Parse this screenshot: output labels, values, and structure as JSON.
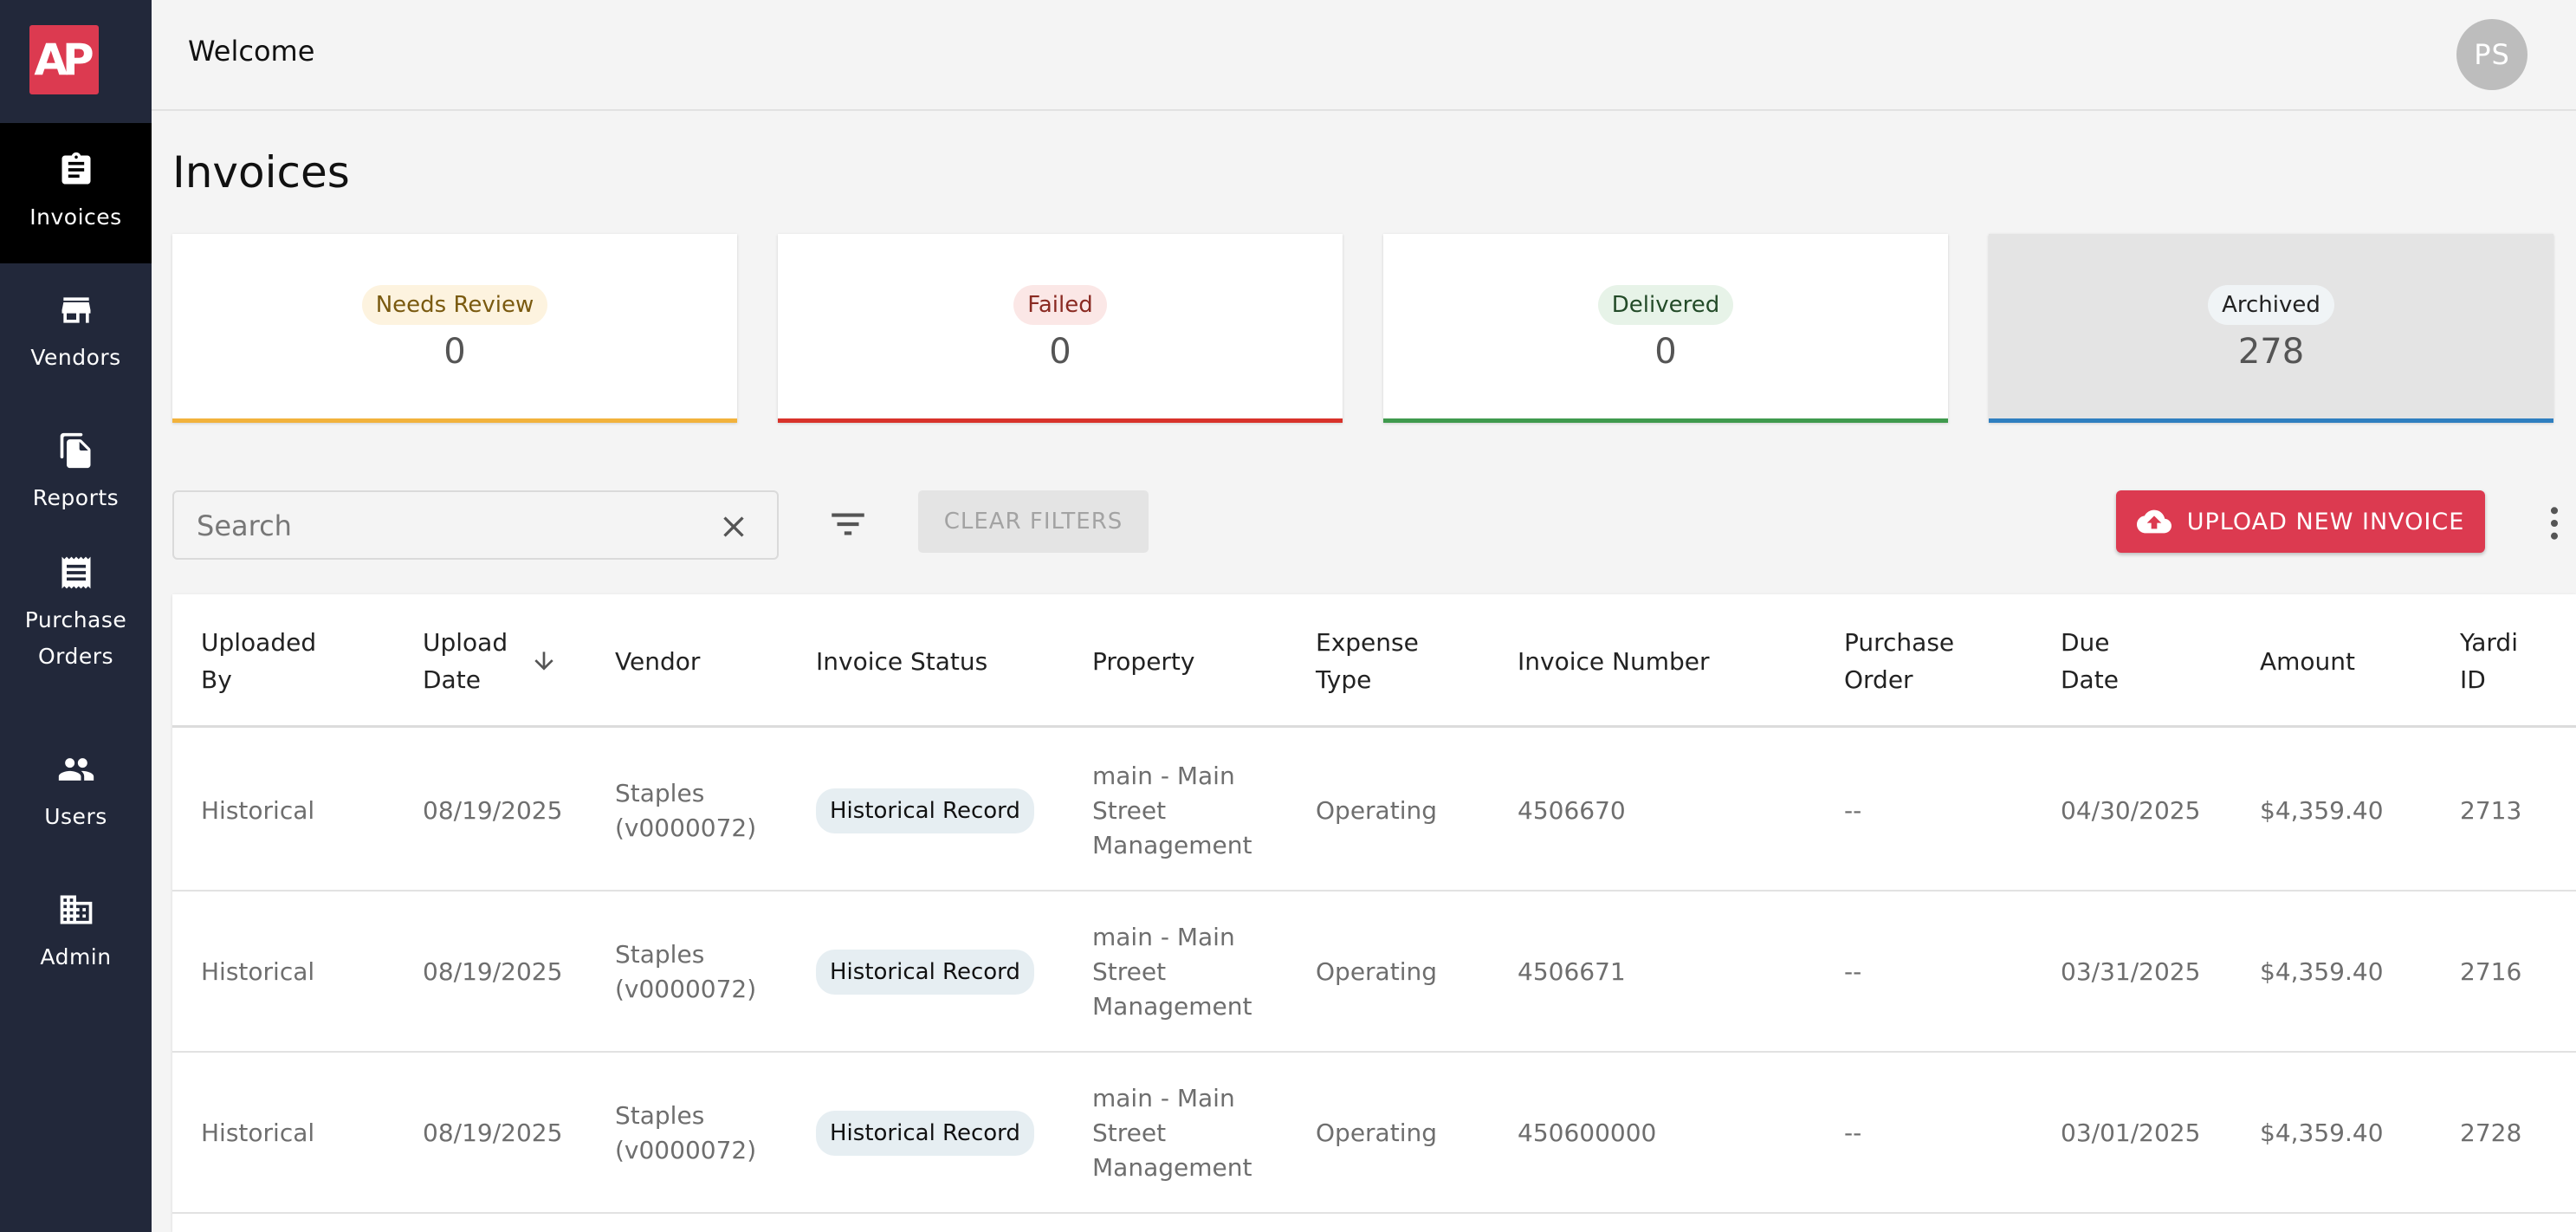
{
  "app": {
    "logo_text": "AP",
    "welcome": "Welcome",
    "avatar_initials": "PS",
    "brand_color": "#dc3a50"
  },
  "sidebar": {
    "items": [
      {
        "label": "Invoices",
        "icon": "clipboard-icon",
        "active": true
      },
      {
        "label": "Vendors",
        "icon": "store-icon",
        "active": false
      },
      {
        "label": "Reports",
        "icon": "documents-icon",
        "active": false
      },
      {
        "label": "Purchase Orders",
        "icon": "receipt-icon",
        "active": false
      },
      {
        "label": "Users",
        "icon": "people-icon",
        "active": false
      },
      {
        "label": "Admin",
        "icon": "building-icon",
        "active": false
      }
    ]
  },
  "page": {
    "title": "Invoices"
  },
  "summary_cards": [
    {
      "label": "Needs Review",
      "count": "0",
      "chip_bg": "#fdf3df",
      "chip_color": "#7a5a10",
      "bar_color": "#f2b23c"
    },
    {
      "label": "Failed",
      "count": "0",
      "chip_bg": "#fbe7e6",
      "chip_color": "#8a2a22",
      "bar_color": "#d8322a"
    },
    {
      "label": "Delivered",
      "count": "0",
      "chip_bg": "#e7f3e8",
      "chip_color": "#234b28",
      "bar_color": "#3f9a4d"
    },
    {
      "label": "Archived",
      "count": "278",
      "chip_bg": "#f0f4f6",
      "chip_color": "#222222",
      "bar_color": "#2f7fc0"
    }
  ],
  "toolbar": {
    "search_placeholder": "Search",
    "clear_filters_label": "CLEAR FILTERS",
    "upload_label": "UPLOAD NEW INVOICE"
  },
  "table": {
    "columns": [
      {
        "label": "Uploaded By"
      },
      {
        "label": "Upload Date",
        "sorted": "desc"
      },
      {
        "label": "Vendor"
      },
      {
        "label": "Invoice Status"
      },
      {
        "label": "Property"
      },
      {
        "label": "Expense Type"
      },
      {
        "label": "Invoice Number"
      },
      {
        "label": "Purchase Order"
      },
      {
        "label": "Due Date"
      },
      {
        "label": "Amount"
      },
      {
        "label": "Yardi ID"
      }
    ],
    "rows": [
      {
        "uploaded_by": "Historical",
        "upload_date": "08/19/2025",
        "vendor": "Staples (v0000072)",
        "status": "Historical Record",
        "property": "main - Main Street Management",
        "expense_type": "Operating",
        "invoice_number": "4506670",
        "purchase_order": "--",
        "due_date": "04/30/2025",
        "amount": "$4,359.40",
        "yardi_id": "2713"
      },
      {
        "uploaded_by": "Historical",
        "upload_date": "08/19/2025",
        "vendor": "Staples (v0000072)",
        "status": "Historical Record",
        "property": "main - Main Street Management",
        "expense_type": "Operating",
        "invoice_number": "4506671",
        "purchase_order": "--",
        "due_date": "03/31/2025",
        "amount": "$4,359.40",
        "yardi_id": "2716"
      },
      {
        "uploaded_by": "Historical",
        "upload_date": "08/19/2025",
        "vendor": "Staples (v0000072)",
        "status": "Historical Record",
        "property": "main - Main Street Management",
        "expense_type": "Operating",
        "invoice_number": "450600000",
        "purchase_order": "--",
        "due_date": "03/01/2025",
        "amount": "$4,359.40",
        "yardi_id": "2728"
      }
    ]
  }
}
